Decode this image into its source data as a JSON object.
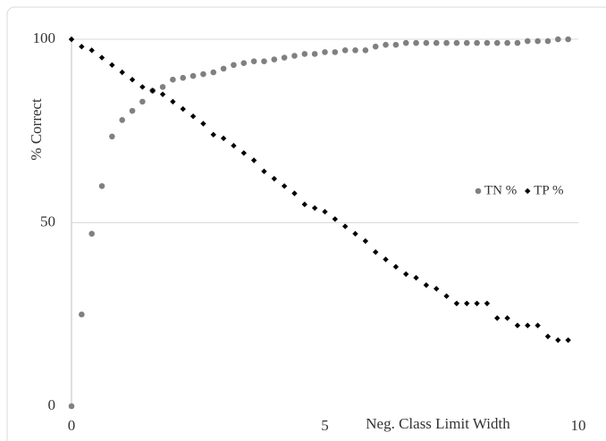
{
  "chart_data": {
    "type": "scatter",
    "x_label": "Neg. Class Limit Width",
    "y_label": "% Correct",
    "x": [
      0,
      0.2,
      0.4,
      0.6,
      0.8,
      1,
      1.2,
      1.4,
      1.6,
      1.8,
      2,
      2.2,
      2.4,
      2.6,
      2.8,
      3,
      3.2,
      3.4,
      3.6,
      3.8,
      4,
      4.2,
      4.4,
      4.6,
      4.8,
      5,
      5.2,
      5.4,
      5.6,
      5.8,
      6,
      6.2,
      6.4,
      6.6,
      6.8,
      7,
      7.2,
      7.4,
      7.6,
      7.8,
      8,
      8.2,
      8.4,
      8.6,
      8.8,
      9,
      9.2,
      9.4,
      9.6,
      9.8
    ],
    "series": [
      {
        "name": "TN %",
        "color": "#808080",
        "marker": "circle",
        "values": [
          0,
          25,
          47,
          60,
          73.5,
          78,
          80.5,
          83,
          86,
          87,
          89,
          89.5,
          90,
          90.5,
          91,
          92,
          93,
          93.5,
          94,
          94,
          94.5,
          95,
          95.5,
          96,
          96,
          96.5,
          96.5,
          97,
          97,
          97,
          98,
          98.5,
          98.5,
          99,
          99,
          99,
          99,
          99,
          99,
          99,
          99,
          99,
          99,
          99,
          99,
          99.5,
          99.5,
          99.5,
          100,
          100
        ]
      },
      {
        "name": "TP %",
        "color": "#000000",
        "marker": "diamond",
        "values": [
          100,
          98,
          97,
          95,
          93,
          91,
          89,
          87,
          86,
          85,
          83,
          81,
          79,
          77,
          74,
          73,
          71,
          69,
          67,
          64,
          62,
          60,
          58,
          55,
          54,
          53,
          51,
          49,
          47,
          45,
          42,
          40,
          38,
          36,
          35,
          33,
          32,
          30,
          28,
          28,
          28,
          28,
          24,
          24,
          22,
          22,
          22,
          19,
          18,
          18
        ]
      }
    ],
    "xlim": [
      0,
      10
    ],
    "xticks": [
      0,
      5,
      10
    ],
    "ylim": [
      0,
      100
    ],
    "yticks": [
      0,
      50,
      100
    ],
    "grid": true,
    "legend": "right"
  }
}
